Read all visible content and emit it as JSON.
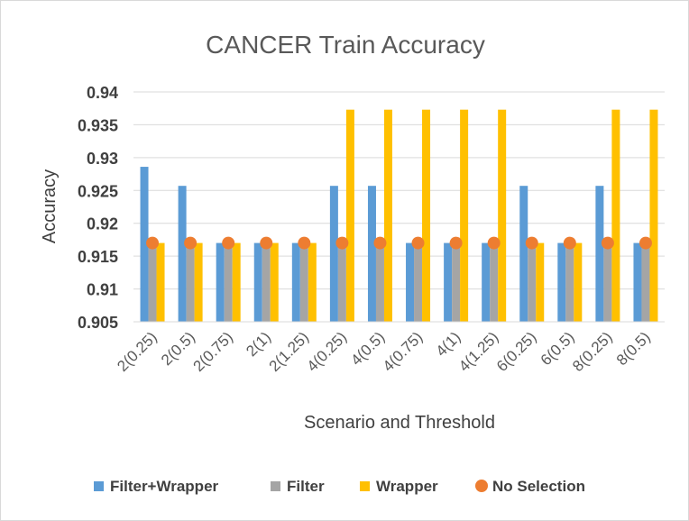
{
  "chart_data": {
    "type": "bar",
    "title": "CANCER Train Accuracy",
    "xlabel": "Scenario and Threshold",
    "ylabel": "Accuracy",
    "ylim": [
      0.905,
      0.94
    ],
    "yticks": [
      "0.905",
      "0.91",
      "0.915",
      "0.92",
      "0.925",
      "0.93",
      "0.935",
      "0.94"
    ],
    "grid": true,
    "legend_position": "bottom",
    "categories": [
      "2(0.25)",
      "2(0.5)",
      "2(0.75)",
      "2(1)",
      "2(1.25)",
      "4(0.25)",
      "4(0.5)",
      "4(0.75)",
      "4(1)",
      "4(1.25)",
      "6(0.25)",
      "6(0.5)",
      "8(0.25)",
      "8(0.5)"
    ],
    "series": [
      {
        "name": "Filter+Wrapper",
        "kind": "bar",
        "color": "#5b9bd5",
        "values": [
          0.9286,
          0.9257,
          0.917,
          0.917,
          0.917,
          0.9257,
          0.9257,
          0.917,
          0.917,
          0.917,
          0.9257,
          0.917,
          0.9257,
          0.917
        ]
      },
      {
        "name": "Filter",
        "kind": "bar",
        "color": "#a5a5a5",
        "values": [
          0.917,
          0.917,
          0.917,
          0.917,
          0.917,
          0.917,
          0.917,
          0.917,
          0.917,
          0.917,
          0.917,
          0.917,
          0.917,
          0.917
        ]
      },
      {
        "name": "Wrapper",
        "kind": "bar",
        "color": "#ffc000",
        "values": [
          0.917,
          0.917,
          0.917,
          0.917,
          0.917,
          0.9373,
          0.9373,
          0.9373,
          0.9373,
          0.9373,
          0.917,
          0.917,
          0.9373,
          0.9373
        ]
      },
      {
        "name": "No Selection",
        "kind": "marker",
        "color": "#ed7d31",
        "values": [
          0.917,
          0.917,
          0.917,
          0.917,
          0.917,
          0.917,
          0.917,
          0.917,
          0.917,
          0.917,
          0.917,
          0.917,
          0.917,
          0.917
        ]
      }
    ]
  }
}
